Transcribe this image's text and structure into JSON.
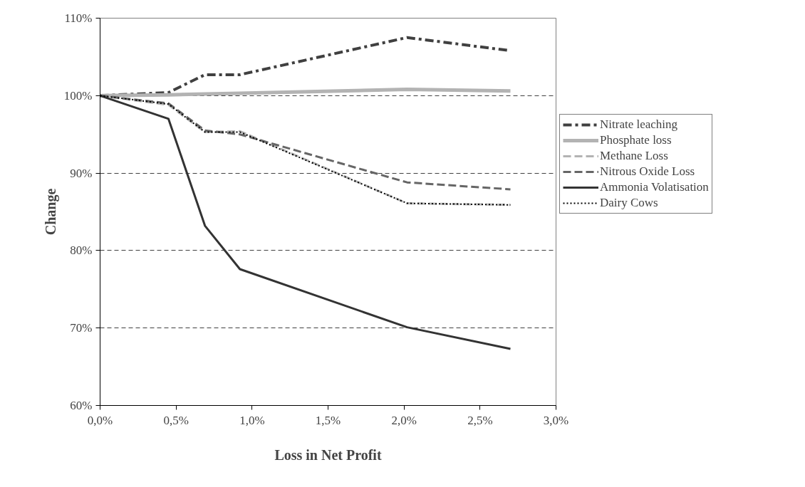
{
  "chart_data": {
    "type": "line",
    "xlabel": "Loss in Net Profit",
    "ylabel": "Change",
    "x": [
      0,
      0.45,
      0.69,
      0.92,
      2.02,
      2.7
    ],
    "series": [
      {
        "name": "Nitrate leaching",
        "color": "#404040",
        "line_style": "dashdot",
        "values": [
          100,
          100.4,
          102.7,
          102.7,
          107.5,
          105.8
        ]
      },
      {
        "name": "Phosphate loss",
        "color": "#b3b3b3",
        "line_style": "solid",
        "values": [
          100,
          100.1,
          100.2,
          100.3,
          100.8,
          100.6
        ]
      },
      {
        "name": "Methane Loss",
        "color": "#b3b3b3",
        "line_style": "dashed",
        "values": [
          100,
          98.8,
          95.3,
          95.4,
          86.1,
          85.9
        ]
      },
      {
        "name": "Nitrous Oxide Loss",
        "color": "#666666",
        "line_style": "dashed",
        "values": [
          100,
          99.0,
          95.5,
          95.0,
          88.8,
          87.9
        ]
      },
      {
        "name": "Ammonia Volatisation",
        "color": "#333333",
        "line_style": "solid",
        "values": [
          100,
          97.0,
          83.2,
          77.6,
          70.1,
          67.3
        ]
      },
      {
        "name": "Dairy Cows",
        "color": "#000000",
        "line_style": "dotted",
        "values": [
          100,
          98.9,
          95.3,
          95.3,
          86.1,
          85.9
        ]
      }
    ],
    "xlim": [
      0,
      3.0
    ],
    "xticks": [
      {
        "value": 0,
        "label": "0,0%"
      },
      {
        "value": 0.5,
        "label": "0,5%"
      },
      {
        "value": 1.0,
        "label": "1,0%"
      },
      {
        "value": 1.5,
        "label": "1,5%"
      },
      {
        "value": 2.0,
        "label": "2,0%"
      },
      {
        "value": 2.5,
        "label": "2,5%"
      },
      {
        "value": 3.0,
        "label": "3,0%"
      }
    ],
    "ylim": [
      60,
      110
    ],
    "yticks": [
      {
        "value": 60,
        "label": "60%"
      },
      {
        "value": 70,
        "label": "70%"
      },
      {
        "value": 80,
        "label": "80%"
      },
      {
        "value": 90,
        "label": "90%"
      },
      {
        "value": 100,
        "label": "100%"
      },
      {
        "value": 110,
        "label": "110%"
      }
    ],
    "grid": "y",
    "legend": "right",
    "marker": "none"
  }
}
